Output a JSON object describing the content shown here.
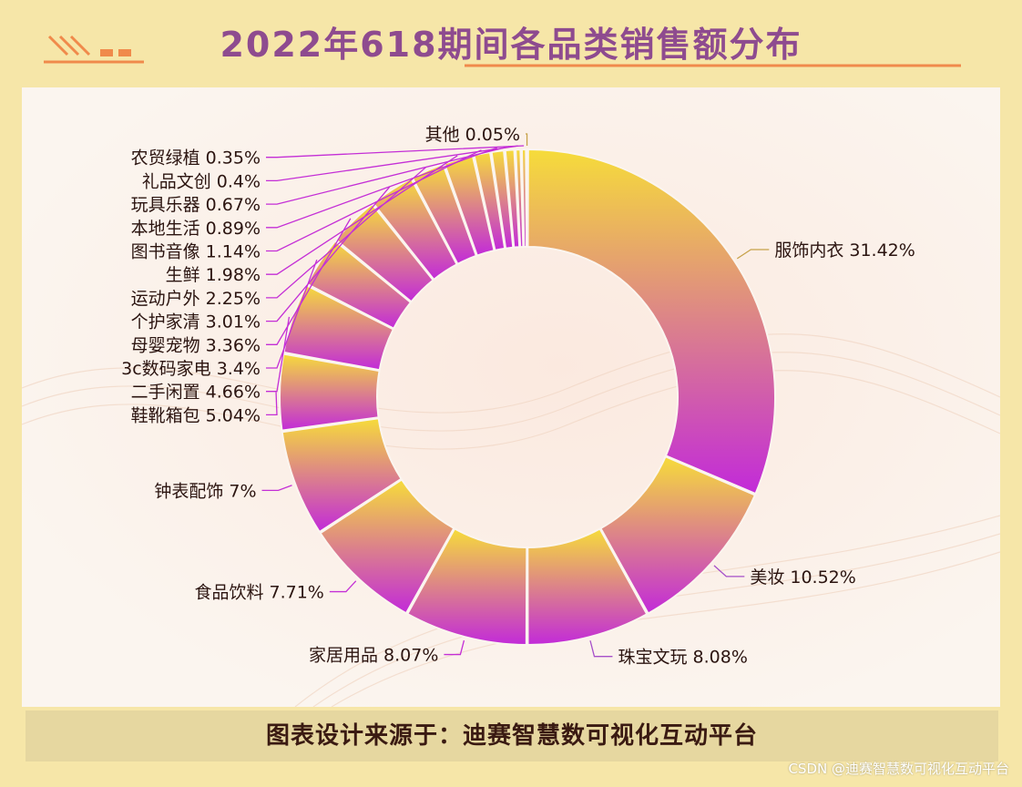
{
  "header": {
    "title": "2022年618期间各品类销售额分布"
  },
  "footer": {
    "text": "图表设计来源于：迪赛智慧数可视化互动平台"
  },
  "watermark": "CSDN @迪赛智慧数可视化互动平台",
  "colors": {
    "gradient_top": "#f6dc3a",
    "gradient_bottom": "#c22ad9",
    "title": "#8e4b8f",
    "leader_right": "#a64fc9",
    "leader_left_small": "#c42fd6"
  },
  "chart_data": {
    "type": "pie",
    "variant": "donut",
    "title": "2022年618期间各品类销售额分布",
    "unit": "%",
    "slices": [
      {
        "label": "服饰内衣",
        "value": 31.42
      },
      {
        "label": "美妆",
        "value": 10.52
      },
      {
        "label": "珠宝文玩",
        "value": 8.08
      },
      {
        "label": "家居用品",
        "value": 8.07
      },
      {
        "label": "食品饮料",
        "value": 7.71
      },
      {
        "label": "钟表配饰",
        "value": 7
      },
      {
        "label": "鞋靴箱包",
        "value": 5.04
      },
      {
        "label": "二手闲置",
        "value": 4.66
      },
      {
        "label": "3c数码家电",
        "value": 3.4
      },
      {
        "label": "母婴宠物",
        "value": 3.36
      },
      {
        "label": "个护家清",
        "value": 3.01
      },
      {
        "label": "运动户外",
        "value": 2.25
      },
      {
        "label": "生鲜",
        "value": 1.98
      },
      {
        "label": "图书音像",
        "value": 1.14
      },
      {
        "label": "本地生活",
        "value": 0.89
      },
      {
        "label": "玩具乐器",
        "value": 0.67
      },
      {
        "label": "礼品文创",
        "value": 0.4
      },
      {
        "label": "农贸绿植",
        "value": 0.35
      },
      {
        "label": "其他",
        "value": 0.05
      }
    ]
  }
}
